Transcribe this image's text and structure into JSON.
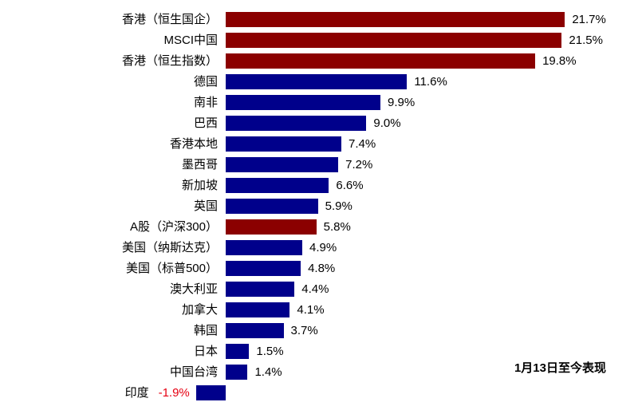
{
  "chart_data": {
    "type": "bar",
    "orientation": "horizontal",
    "title": "",
    "annotation": "1月13日至今表现",
    "xlim": [
      -3,
      26
    ],
    "grid": false,
    "legend": "none",
    "categories": [
      "香港（恒生国企）",
      "MSCI中国",
      "香港（恒生指数）",
      "德国",
      "南非",
      "巴西",
      "香港本地",
      "墨西哥",
      "新加坡",
      "英国",
      "A股（沪深300）",
      "美国（纳斯达克）",
      "美国（标普500）",
      "澳大利亚",
      "加拿大",
      "韩国",
      "日本",
      "中国台湾",
      "印度"
    ],
    "values": [
      21.7,
      21.5,
      19.8,
      11.6,
      9.9,
      9.0,
      7.4,
      7.2,
      6.6,
      5.9,
      5.8,
      4.9,
      4.8,
      4.4,
      4.1,
      3.7,
      1.5,
      1.4,
      -1.9
    ],
    "value_labels": [
      "21.7%",
      "21.5%",
      "19.8%",
      "11.6%",
      "9.9%",
      "9.0%",
      "7.4%",
      "7.2%",
      "6.6%",
      "5.9%",
      "5.8%",
      "4.9%",
      "4.8%",
      "4.4%",
      "4.1%",
      "3.7%",
      "1.5%",
      "1.4%",
      "-1.9%"
    ],
    "colors": [
      "#8b0000",
      "#8b0000",
      "#8b0000",
      "#00008b",
      "#00008b",
      "#00008b",
      "#00008b",
      "#00008b",
      "#00008b",
      "#00008b",
      "#8b0000",
      "#00008b",
      "#00008b",
      "#00008b",
      "#00008b",
      "#00008b",
      "#00008b",
      "#00008b",
      "#00008b"
    ],
    "highlight_color": "#8b0000",
    "default_color": "#00008b",
    "negative_label_color": "#e60012",
    "positive_label_color": "#000000"
  }
}
